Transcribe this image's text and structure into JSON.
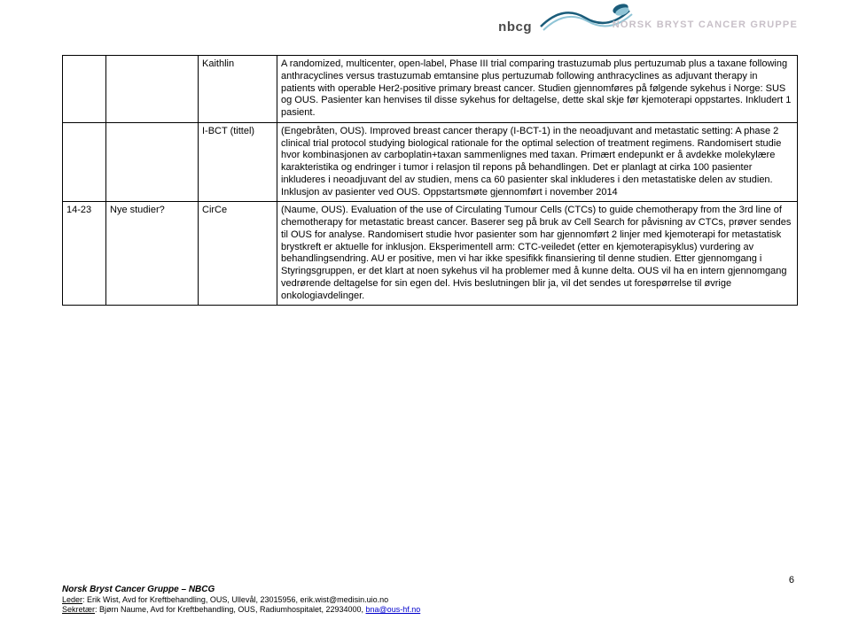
{
  "header": {
    "nbcg": "nbcg",
    "norsk": "NORSK BRYST CANCER GRUPPE",
    "swirl_color_dark": "#1a5c7a",
    "swirl_color_light": "#8fc4d6"
  },
  "rows": [
    {
      "a": "",
      "b": "",
      "c": "Kaithlin",
      "d": "A randomized, multicenter, open-label, Phase III trial comparing trastuzumab plus pertuzumab plus a taxane following anthracyclines versus trastuzumab emtansine plus pertuzumab following anthracyclines as adjuvant therapy in patients with operable Her2-positive primary breast cancer. Studien gjennomføres på følgende sykehus i Norge: SUS og OUS. Pasienter kan henvises til disse sykehus for deltagelse, dette skal skje før kjemoterapi oppstartes. Inkludert 1 pasient."
    },
    {
      "a": "",
      "b": "",
      "c": "I-BCT (tittel)",
      "d": "(Engebråten, OUS). Improved breast cancer therapy (I-BCT-1) in the neoadjuvant and metastatic setting: A phase 2 clinical trial protocol studying biological rationale for the optimal selection of treatment regimens. Randomisert studie hvor kombinasjonen av carboplatin+taxan sammenlignes med taxan. Primært endepunkt er å avdekke molekylære karakteristika og endringer i tumor i relasjon til repons på behandlingen. Det er planlagt at cirka 100 pasienter inkluderes i neoadjuvant del av studien, mens ca 60 pasienter skal inkluderes i den metastatiske delen av studien. Inklusjon av pasienter ved OUS. Oppstartsmøte gjennomført i november 2014"
    },
    {
      "a": "14-23",
      "b": "Nye studier?",
      "c": "CirCe",
      "d": "(Naume, OUS). Evaluation of the use of Circulating Tumour Cells (CTCs) to guide chemotherapy from the 3rd line of chemotherapy for metastatic breast cancer. Baserer seg på bruk av Cell Search for påvisning av CTCs, prøver sendes til OUS for analyse. Randomisert studie hvor pasienter som har gjennomført 2 linjer med kjemoterapi for metastatisk brystkreft er aktuelle for inklusjon. Eksperimentell arm: CTC-veiledet (etter en kjemoterapisyklus) vurdering av behandlingsendring. AU er positive, men vi har ikke spesifikk finansiering til denne studien. Etter gjennomgang i Styringsgruppen, er det klart at noen sykehus vil ha problemer med å kunne delta. OUS vil ha en intern gjennomgang vedrørende deltagelse for sin egen del. Hvis beslutningen blir ja, vil det sendes ut forespørrelse til øvrige onkologiavdelinger."
    }
  ],
  "footer": {
    "title": "Norsk Bryst Cancer Gruppe – NBCG",
    "line1_prefix": "Leder",
    "line1_rest": ": Erik Wist, Avd for Kreftbehandling, OUS, Ullevål, 23015956, erik.wist@medisin.uio.no",
    "line2_prefix": "Sekretær",
    "line2_rest": ": Bjørn Naume, Avd for Kreftbehandling, OUS, Radiumhospitalet, 22934000, ",
    "line2_email": "bna@ous-hf.no"
  },
  "page_number": "6"
}
